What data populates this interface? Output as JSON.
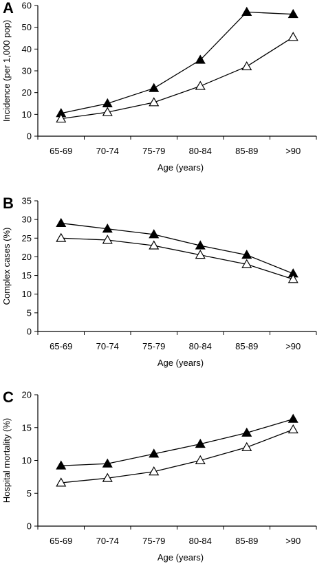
{
  "figure": {
    "background": "#ffffff",
    "line_color": "#000000"
  },
  "chart_data": [
    {
      "type": "line",
      "panel_label": "A",
      "categories": [
        "65-69",
        "70-74",
        "75-79",
        "80-84",
        "85-89",
        ">90"
      ],
      "xlabel": "Age (years)",
      "ylabel": "Incidence (per 1,000 pop)",
      "ylim": [
        0,
        60
      ],
      "yticks": [
        0,
        10,
        20,
        30,
        40,
        50,
        60
      ],
      "grid": false,
      "legend": "none",
      "series": [
        {
          "marker": "filled-triangle",
          "values": [
            10.5,
            15,
            22,
            35,
            57,
            56
          ]
        },
        {
          "marker": "open-triangle",
          "values": [
            8,
            11,
            15.5,
            23,
            32,
            45.5
          ]
        }
      ]
    },
    {
      "type": "line",
      "panel_label": "B",
      "categories": [
        "65-69",
        "70-74",
        "75-79",
        "80-84",
        "85-89",
        ">90"
      ],
      "xlabel": "Age (years)",
      "ylabel": "Complex cases (%)",
      "ylim": [
        0,
        35
      ],
      "yticks": [
        0,
        5,
        10,
        15,
        20,
        25,
        30,
        35
      ],
      "grid": false,
      "legend": "none",
      "series": [
        {
          "marker": "filled-triangle",
          "values": [
            29,
            27.5,
            26,
            23,
            20.5,
            15.5
          ]
        },
        {
          "marker": "open-triangle",
          "values": [
            25,
            24.5,
            23,
            20.5,
            18,
            14
          ]
        }
      ]
    },
    {
      "type": "line",
      "panel_label": "C",
      "categories": [
        "65-69",
        "70-74",
        "75-79",
        "80-84",
        "85-89",
        ">90"
      ],
      "xlabel": "Age (years)",
      "ylabel": "Hospital mortality (%)",
      "ylim": [
        0,
        20
      ],
      "yticks": [
        0,
        5,
        10,
        15,
        20
      ],
      "grid": false,
      "legend": "none",
      "series": [
        {
          "marker": "filled-triangle",
          "values": [
            9.2,
            9.5,
            11,
            12.5,
            14.2,
            16.3
          ]
        },
        {
          "marker": "open-triangle",
          "values": [
            6.6,
            7.3,
            8.3,
            10,
            12,
            14.7
          ]
        }
      ]
    }
  ]
}
